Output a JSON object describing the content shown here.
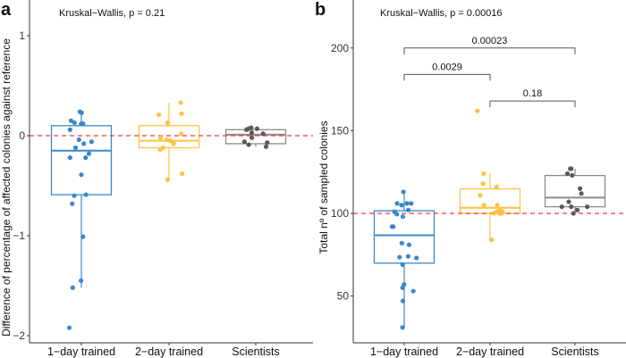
{
  "colors": {
    "1-day trained": "#3b88c8",
    "2-day trained": "#fdc243",
    "Scientists": "#5a5a5a",
    "box_scientists": "#8a8a8a",
    "reference_line": "#f23b3b"
  },
  "chart_data": [
    {
      "panel_label": "a",
      "type": "boxplot",
      "annotation": "Kruskal−Wallis, p = 0.21",
      "ylabel": "Difference of percentage of affected colonies against reference",
      "xlabel": "",
      "categories": [
        "1−day trained",
        "2−day trained",
        "Scientists"
      ],
      "ylim": [
        -2.05,
        1.35
      ],
      "yticks": [
        1,
        0,
        -1,
        -2
      ],
      "ytick_labels": [
        "1",
        "0",
        "−1",
        "−2"
      ],
      "reference_line": 0,
      "boxes": [
        {
          "q1": -0.59,
          "median": -0.15,
          "q3": 0.1,
          "whisker_low": -1.52,
          "whisker_high": 0.24
        },
        {
          "q1": -0.12,
          "median": -0.05,
          "q3": 0.1,
          "whisker_low": -0.44,
          "whisker_high": 0.33
        },
        {
          "q1": -0.08,
          "median": 0.01,
          "q3": 0.06,
          "whisker_low": -0.11,
          "whisker_high": 0.08
        }
      ],
      "points": [
        [
          0.12,
          0.12,
          0.15,
          0.13,
          0.24,
          0.23,
          0.06,
          -0.06,
          -0.08,
          -0.04,
          -0.12,
          -0.18,
          -0.22,
          -0.22,
          -0.39,
          -0.6,
          -0.59,
          -0.68,
          -1.01,
          -1.45,
          -1.52,
          -1.92
        ],
        [
          0.33,
          0.22,
          0.21,
          0.13,
          0.02,
          -0.02,
          -0.04,
          -0.05,
          -0.08,
          -0.12,
          -0.14,
          -0.38,
          -0.44
        ],
        [
          0.07,
          0.07,
          0.08,
          0.06,
          0.02,
          -0.02,
          0.03,
          -0.06,
          -0.07,
          -0.09,
          -0.11
        ]
      ],
      "brackets": []
    },
    {
      "panel_label": "b",
      "type": "boxplot",
      "annotation": "Kruskal−Wallis, p = 0.00016",
      "ylabel": "Total nº of sampled colonies",
      "xlabel": "",
      "categories": [
        "1−day trained",
        "2−day trained",
        "Scientists"
      ],
      "ylim": [
        26,
        225
      ],
      "yticks": [
        200,
        150,
        100,
        50
      ],
      "ytick_labels": [
        "200",
        "150",
        "100",
        "50"
      ],
      "reference_line": 100,
      "boxes": [
        {
          "q1": 69.9,
          "median": 86.8,
          "q3": 101.6,
          "whisker_low": 31,
          "whisker_high": 113
        },
        {
          "q1": 100,
          "median": 103.4,
          "q3": 114.8,
          "whisker_low": 84,
          "whisker_high": 124
        },
        {
          "q1": 104,
          "median": 109.5,
          "q3": 122.9,
          "whisker_low": 100,
          "whisker_high": 127
        }
      ],
      "points": [
        [
          113,
          106,
          106,
          105,
          106,
          102,
          101,
          99.5,
          98,
          92,
          92,
          82,
          81,
          74,
          73,
          73.5,
          69,
          57,
          55,
          53,
          47,
          31
        ],
        [
          124,
          118,
          116,
          111,
          105,
          105,
          102,
          101,
          100,
          100,
          101,
          100,
          84,
          162
        ],
        [
          127,
          127,
          124,
          123,
          115,
          112,
          107,
          104,
          104,
          104,
          102,
          100
        ]
      ],
      "brackets": [
        {
          "from": 0,
          "to": 2,
          "level": 200,
          "label": "0.00023"
        },
        {
          "from": 0,
          "to": 1,
          "level": 184,
          "label": "0.0029"
        },
        {
          "from": 1,
          "to": 2,
          "level": 168,
          "label": "0.18"
        }
      ]
    }
  ]
}
